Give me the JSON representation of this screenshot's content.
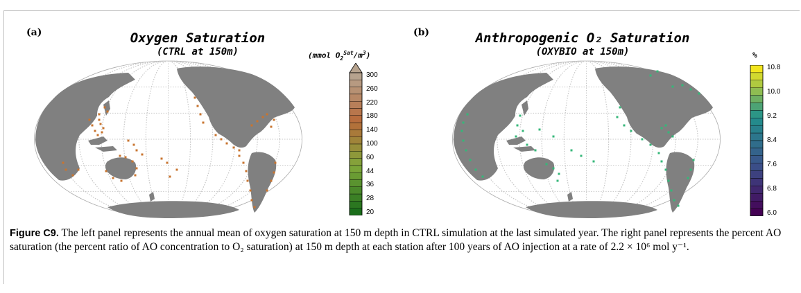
{
  "panels": [
    {
      "label": "(a)",
      "title": "Oxygen Saturation",
      "subtitle": "(CTRL at 150m)",
      "units": {
        "pre": "(mmol O",
        "sub": "2",
        "sup": "Sat",
        "post": "/m",
        "sup2": "3",
        "end": ")"
      },
      "colorbar": {
        "ticks": [
          "300",
          "260",
          "220",
          "180",
          "140",
          "100",
          "60",
          "44",
          "36",
          "28",
          "20"
        ],
        "colors_top": "#b7a38e",
        "colors_mid": "#b86a3a",
        "colors_low": "#7fa83a",
        "colors_bottom": "#1b6e1b",
        "arrow_top": true
      },
      "marker_color": "#c8742f"
    },
    {
      "label": "(b)",
      "title": "Anthropogenic O₂ Saturation",
      "subtitle": "(OXYBIO at 150m)",
      "units_text": "%",
      "colorbar": {
        "ticks": [
          "10.8",
          "10.0",
          "9.2",
          "8.4",
          "7.6",
          "6.8",
          "6.0"
        ],
        "colors_top": "#f2e51d",
        "colors_mid": "#21918c",
        "colors_low": "#3b528b",
        "colors_bottom": "#440154"
      },
      "marker_color": "#35b779"
    }
  ],
  "caption": {
    "label": "Figure C9.",
    "text": " The left panel represents the annual mean of oxygen saturation at 150 m depth in CTRL simulation at the last simulated year. The right panel represents the percent AO saturation (the percent ratio of AO concentration to O₂ saturation) at 150 m depth at each station after 100 years of AO injection at a rate of 2.2 × 10⁶ mol y⁻¹."
  },
  "style": {
    "land_color": "#808080",
    "graticule_color": "#c8c8c8"
  }
}
